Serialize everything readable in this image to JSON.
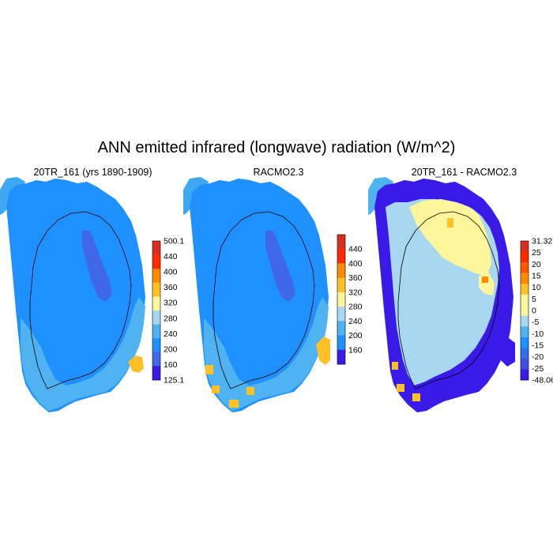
{
  "title": "ANN emitted infrared (longwave) radiation (W/m^2)",
  "panels": [
    {
      "title": "20TR_161 (yrs 1890-1909)",
      "colorbar": {
        "labels": [
          "500.1",
          "440",
          "400",
          "360",
          "320",
          "280",
          "240",
          "200",
          "160",
          "125.1"
        ],
        "colors": [
          "#d7301f",
          "#ff2a00",
          "#ff8c00",
          "#ffc125",
          "#fff59a",
          "#a8d8f0",
          "#4fb3f2",
          "#1e90ff",
          "#3f67e6",
          "#3a1ae8"
        ]
      }
    },
    {
      "title": "RACMO2.3",
      "colorbar": {
        "labels": [
          "440",
          "400",
          "360",
          "320",
          "280",
          "240",
          "200",
          "160"
        ],
        "colors": [
          "#d7301f",
          "#ff2a00",
          "#ff8c00",
          "#ffc125",
          "#fff59a",
          "#a8d8f0",
          "#4fb3f2",
          "#1e90ff",
          "#3a1ae8"
        ]
      }
    },
    {
      "title": "20TR_161 - RACMO2.3",
      "colorbar": {
        "labels": [
          "31.32",
          "25",
          "20",
          "15",
          "10",
          "5",
          "0",
          "-5",
          "-10",
          "-15",
          "-20",
          "-25",
          "-48.06"
        ],
        "colors": [
          "#d7301f",
          "#ff2a00",
          "#ff5a00",
          "#ff8c00",
          "#ffc125",
          "#fff59a",
          "#fff59a",
          "#a8d8f0",
          "#4fb3f2",
          "#1e90ff",
          "#2f6fe8",
          "#3f4fe6",
          "#3a1ae8"
        ]
      }
    }
  ]
}
